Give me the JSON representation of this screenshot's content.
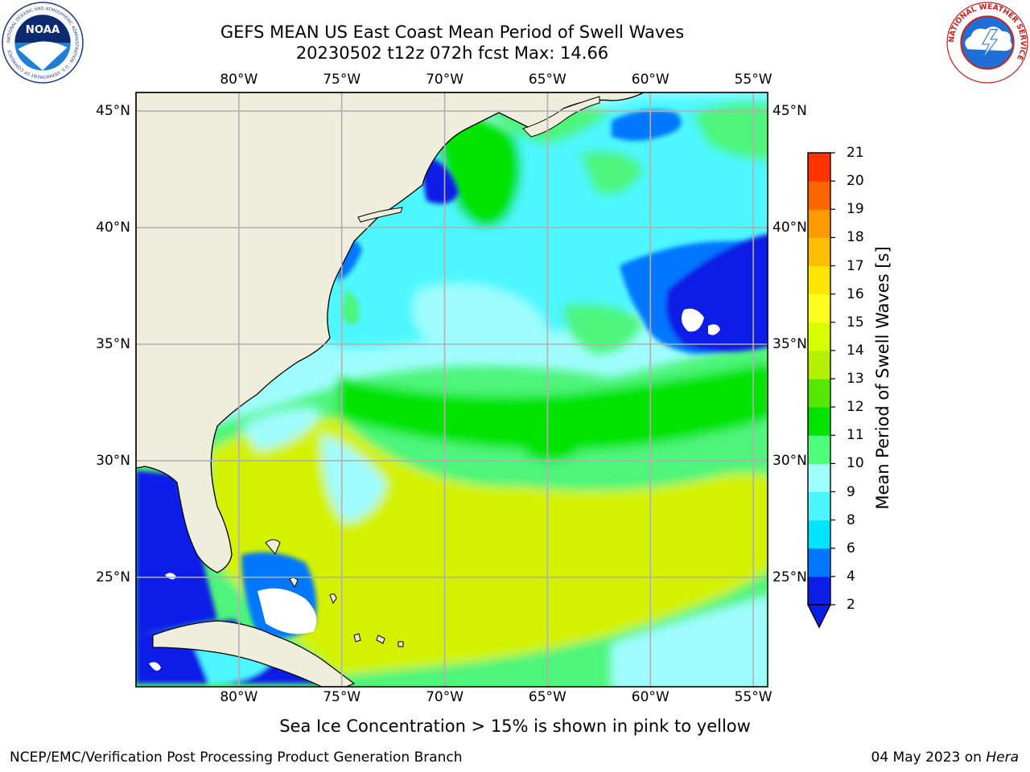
{
  "title": {
    "line1": "GEFS MEAN US East Coast Mean Period of Swell Waves",
    "line2": "20230502 t12z 072h fcst   Max: 14.66"
  },
  "logos": {
    "left": "noaa-logo",
    "left_text": "NOAA",
    "left_ring_text": "NATIONAL OCEANIC AND ATMOSPHERIC ADMINISTRATION · U.S. DEPARTMENT OF COMMERCE",
    "right": "nws-logo",
    "right_ring_text": "NATIONAL WEATHER SERVICE"
  },
  "map": {
    "lon_ticks": [
      "80°W",
      "75°W",
      "70°W",
      "65°W",
      "60°W",
      "55°W"
    ],
    "lat_ticks": [
      "45°N",
      "40°N",
      "35°N",
      "30°N",
      "25°N"
    ],
    "lon_values": [
      -80,
      -75,
      -70,
      -65,
      -60,
      -55
    ],
    "lat_values": [
      45,
      40,
      35,
      30,
      25
    ],
    "lon_range": [
      -85,
      -54.3
    ],
    "lat_range": [
      20.3,
      45.8
    ],
    "grid": true,
    "land_color": "#efeedd",
    "grid_color": "#b0b0b0"
  },
  "colorbar": {
    "title": "Mean Period of Swell Waves [s]",
    "levels": [
      "2",
      "4",
      "6",
      "8",
      "9",
      "10",
      "11",
      "12",
      "13",
      "14",
      "15",
      "16",
      "17",
      "18",
      "19",
      "20",
      "21"
    ],
    "colors": [
      "#0a1ee6",
      "#0077ff",
      "#00e5ff",
      "#4cf6ff",
      "#a0ffff",
      "#4dff7a",
      "#00e400",
      "#56e800",
      "#b5f000",
      "#d7ff00",
      "#ffff1f",
      "#ffe600",
      "#ffbf00",
      "#ff9900",
      "#ff6600",
      "#ff3300",
      "#ff0000"
    ],
    "extend": "min",
    "under_color": "#0a1ee6"
  },
  "note": "Sea Ice Concentration > 15% is shown in pink to yellow",
  "footer": {
    "left": "NCEP/EMC/Verification Post Processing Product Generation Branch",
    "right_date": "04 May 2023 on ",
    "right_host": "Hera"
  }
}
